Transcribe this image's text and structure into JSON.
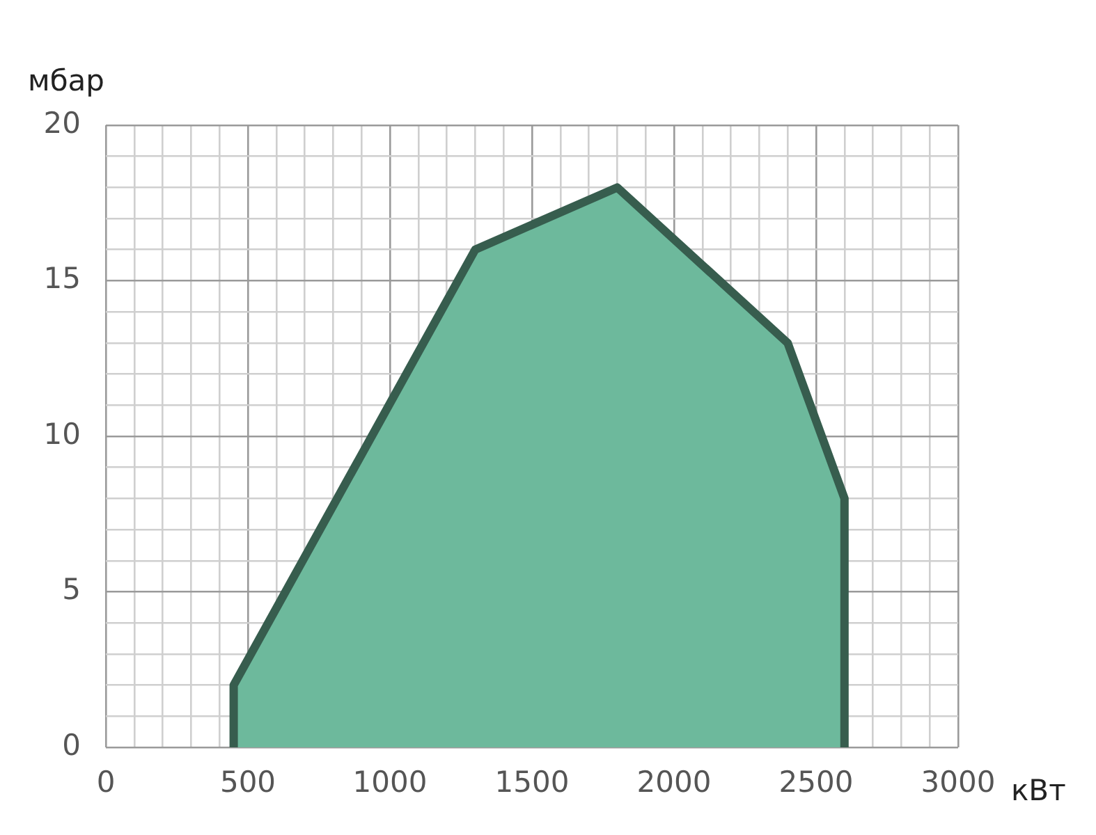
{
  "chart_data": {
    "type": "area",
    "xlabel": "кВт",
    "ylabel": "мбар",
    "series": [
      {
        "color": "#6db99c",
        "x": [
          450,
          450,
          1300,
          1800,
          2400,
          2600,
          2600
        ],
        "values": [
          0,
          2,
          16,
          18,
          13,
          8,
          0
        ]
      }
    ],
    "xlim": [
      0,
      3000
    ],
    "xticks": [
      0,
      {
        "value": 100,
        "label": null
      },
      {
        "value": 200,
        "label": null
      },
      {
        "value": 300,
        "label": null
      },
      {
        "value": 400,
        "label": null
      },
      500,
      {
        "value": 600,
        "label": null
      },
      {
        "value": 700,
        "label": null
      },
      {
        "value": 800,
        "label": null
      },
      {
        "value": 900,
        "label": null
      },
      1000,
      {
        "value": 1100,
        "label": null
      },
      {
        "value": 1200,
        "label": null
      },
      {
        "value": 1300,
        "label": null
      },
      {
        "value": 1400,
        "label": null
      },
      1500,
      {
        "value": 1600,
        "label": null
      },
      {
        "value": 1700,
        "label": null
      },
      {
        "value": 1800,
        "label": null
      },
      {
        "value": 1900,
        "label": null
      },
      2000,
      {
        "value": 2100,
        "label": null
      },
      {
        "value": 2200,
        "label": null
      },
      {
        "value": 2300,
        "label": null
      },
      {
        "value": 2400,
        "label": null
      },
      2500,
      {
        "value": 2600,
        "label": null
      },
      {
        "value": 2700,
        "label": null
      },
      {
        "value": 2800,
        "label": null
      },
      {
        "value": 2900,
        "label": null
      },
      3000
    ],
    "ylim": [
      0,
      20
    ],
    "yticks": [
      0,
      {
        "value": 1,
        "label": null
      },
      {
        "value": 2,
        "label": null
      },
      {
        "value": 3,
        "label": null
      },
      {
        "value": 4,
        "label": null
      },
      5,
      {
        "value": 6,
        "label": null
      },
      {
        "value": 7,
        "label": null
      },
      {
        "value": 8,
        "label": null
      },
      {
        "value": 9,
        "label": null
      },
      10,
      {
        "value": 11,
        "label": null
      },
      {
        "value": 12,
        "label": null
      },
      {
        "value": 13,
        "label": null
      },
      {
        "value": 14,
        "label": null
      },
      15,
      {
        "value": 16,
        "label": null
      },
      {
        "value": 17,
        "label": null
      },
      {
        "value": 18,
        "label": null
      },
      {
        "value": 19,
        "label": null
      },
      20
    ],
    "grid": true,
    "marker": "none"
  }
}
